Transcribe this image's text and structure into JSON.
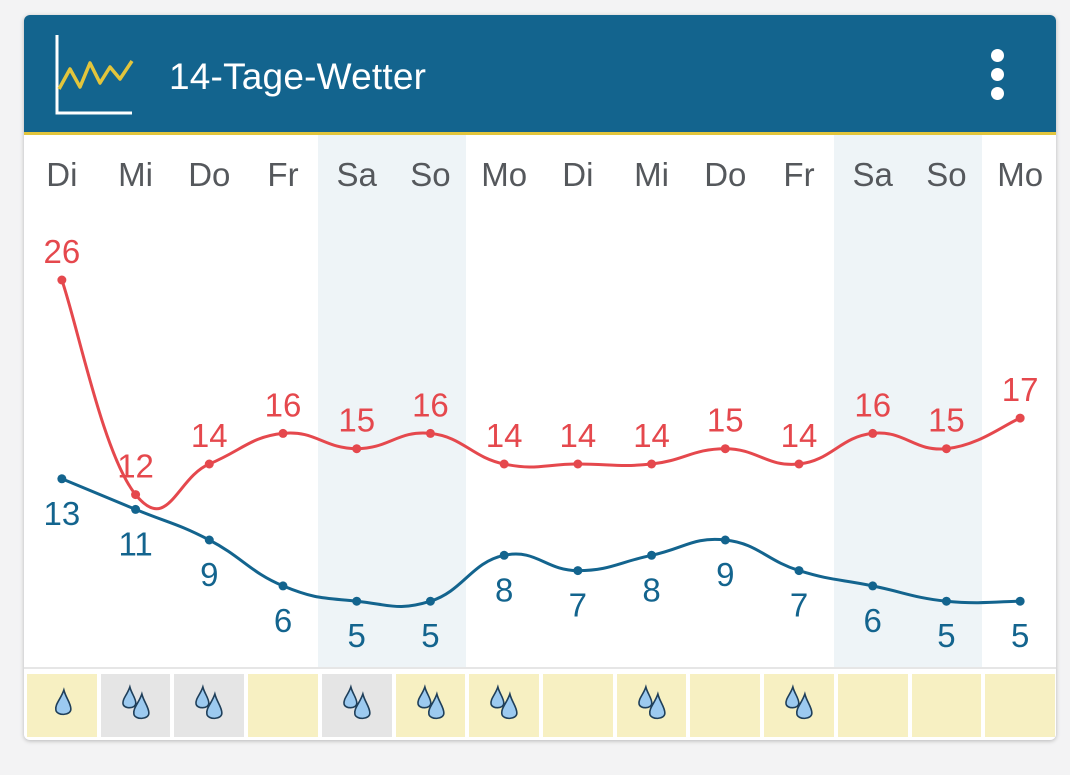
{
  "header": {
    "title": "14-Tage-Wetter",
    "icon": "line-chart-icon",
    "menu_icon": "more-vert-icon",
    "color": "#13648e",
    "accent": "#e2c53c"
  },
  "colors": {
    "max": "#e5484d",
    "min": "#13648e",
    "weekend": "#eef4f7",
    "rain_bg": "#f7f0c2",
    "rain_bg_gray": "#e5e5e5"
  },
  "days": [
    {
      "label": "Di",
      "weekend": false,
      "max": 26,
      "min": 13,
      "drops": 1,
      "cell": "yellow"
    },
    {
      "label": "Mi",
      "weekend": false,
      "max": 12,
      "min": 11,
      "drops": 2,
      "cell": "gray"
    },
    {
      "label": "Do",
      "weekend": false,
      "max": 14,
      "min": 9,
      "drops": 2,
      "cell": "gray"
    },
    {
      "label": "Fr",
      "weekend": false,
      "max": 16,
      "min": 6,
      "drops": 0,
      "cell": "yellow"
    },
    {
      "label": "Sa",
      "weekend": true,
      "max": 15,
      "min": 5,
      "drops": 2,
      "cell": "gray"
    },
    {
      "label": "So",
      "weekend": true,
      "max": 16,
      "min": 5,
      "drops": 2,
      "cell": "yellow"
    },
    {
      "label": "Mo",
      "weekend": false,
      "max": 14,
      "min": 8,
      "drops": 2,
      "cell": "yellow"
    },
    {
      "label": "Di",
      "weekend": false,
      "max": 14,
      "min": 7,
      "drops": 0,
      "cell": "yellow"
    },
    {
      "label": "Mi",
      "weekend": false,
      "max": 14,
      "min": 8,
      "drops": 2,
      "cell": "yellow"
    },
    {
      "label": "Do",
      "weekend": false,
      "max": 15,
      "min": 9,
      "drops": 0,
      "cell": "yellow"
    },
    {
      "label": "Fr",
      "weekend": false,
      "max": 14,
      "min": 7,
      "drops": 2,
      "cell": "yellow"
    },
    {
      "label": "Sa",
      "weekend": true,
      "max": 16,
      "min": 6,
      "drops": 0,
      "cell": "yellow"
    },
    {
      "label": "So",
      "weekend": true,
      "max": 15,
      "min": 5,
      "drops": 0,
      "cell": "yellow"
    },
    {
      "label": "Mo",
      "weekend": false,
      "max": 17,
      "min": 5,
      "drops": 0,
      "cell": "yellow"
    }
  ],
  "chart_data": {
    "type": "line",
    "categories": [
      "Di",
      "Mi",
      "Do",
      "Fr",
      "Sa",
      "So",
      "Mo",
      "Di",
      "Mi",
      "Do",
      "Fr",
      "Sa",
      "So",
      "Mo"
    ],
    "series": [
      {
        "values": [
          26,
          12,
          14,
          16,
          15,
          16,
          14,
          14,
          14,
          15,
          14,
          16,
          15,
          17
        ],
        "color": "#e5484d"
      },
      {
        "values": [
          13,
          11,
          9,
          6,
          5,
          5,
          8,
          7,
          8,
          9,
          7,
          6,
          5,
          5
        ],
        "color": "#13648e"
      }
    ],
    "grid": false
  }
}
